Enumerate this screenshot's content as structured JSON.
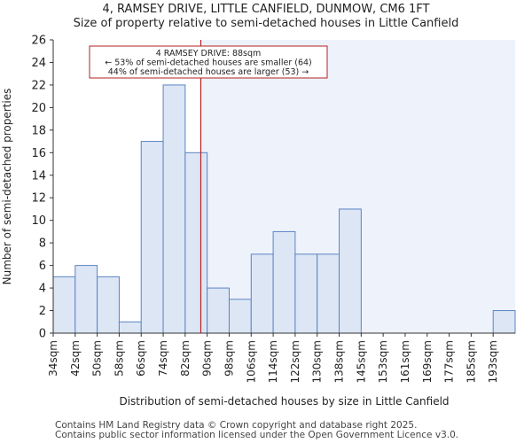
{
  "chart_data": {
    "type": "bar",
    "title": "4, RAMSEY DRIVE, LITTLE CANFIELD, DUNMOW, CM6 1FT",
    "subtitle": "Size of property relative to semi-detached houses in Little Canfield",
    "xlabel": "Distribution of semi-detached houses by size in Little Canfield",
    "ylabel": "Number of semi-detached properties",
    "categories": [
      "34sqm",
      "42sqm",
      "50sqm",
      "58sqm",
      "66sqm",
      "74sqm",
      "82sqm",
      "90sqm",
      "98sqm",
      "106sqm",
      "114sqm",
      "122sqm",
      "130sqm",
      "138sqm",
      "145sqm",
      "153sqm",
      "161sqm",
      "169sqm",
      "177sqm",
      "185sqm",
      "193sqm"
    ],
    "values": [
      5,
      6,
      5,
      1,
      17,
      22,
      16,
      4,
      3,
      7,
      9,
      7,
      7,
      11,
      0,
      0,
      0,
      0,
      0,
      0,
      2
    ],
    "ylim": [
      0,
      26
    ],
    "yticks": [
      0,
      2,
      4,
      6,
      8,
      10,
      12,
      14,
      16,
      18,
      20,
      22,
      24,
      26
    ],
    "marker": {
      "bin_position": 6.71,
      "label": "4 RAMSEY DRIVE: 88sqm",
      "line2": "← 53% of semi-detached houses are smaller (64)",
      "line3": "44% of semi-detached houses are larger (53) →"
    },
    "colors": {
      "bar_fill": "#dce6f5",
      "bar_stroke": "#5b84c4",
      "highlight_bg": "#eef2fb",
      "marker_line": "#b22222"
    },
    "grid": false
  },
  "footer": {
    "line1": "Contains HM Land Registry data © Crown copyright and database right 2025.",
    "line2": "Contains public sector information licensed under the Open Government Licence v3.0."
  }
}
